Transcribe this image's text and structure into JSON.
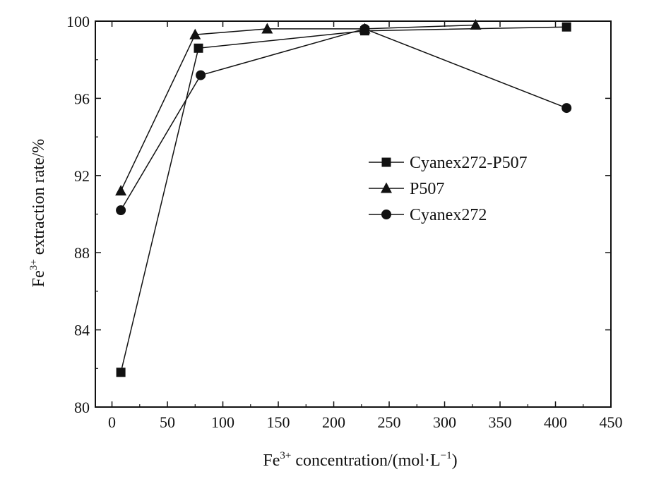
{
  "chart_data": {
    "type": "line",
    "title": "",
    "xlabel": {
      "base": "Fe",
      "sup": "3+",
      "rest": " concentration/(mol·L",
      "unit_sup": "−1",
      "close": ")"
    },
    "ylabel": {
      "base": "Fe",
      "sup": "3+",
      "rest": " extraction rate/%"
    },
    "xlim": [
      -15,
      450
    ],
    "ylim": [
      80,
      100
    ],
    "xticks": [
      0,
      50,
      100,
      150,
      200,
      250,
      300,
      350,
      400,
      450
    ],
    "yticks": [
      80,
      84,
      88,
      92,
      96,
      100
    ],
    "grid": false,
    "legend": {
      "position": "center-right"
    },
    "colors": {
      "line": "#111111",
      "marker": "#111111"
    },
    "series": [
      {
        "name": "Cyanex272-P507",
        "marker": "square",
        "x": [
          8,
          78,
          228,
          410
        ],
        "y": [
          81.8,
          98.6,
          99.5,
          99.7
        ]
      },
      {
        "name": "P507",
        "marker": "triangle",
        "x": [
          8,
          75,
          140,
          228,
          328
        ],
        "y": [
          91.2,
          99.3,
          99.6,
          99.6,
          99.8
        ]
      },
      {
        "name": "Cyanex272",
        "marker": "circle",
        "x": [
          8,
          80,
          228,
          410
        ],
        "y": [
          90.2,
          97.2,
          99.6,
          95.5
        ]
      }
    ]
  }
}
